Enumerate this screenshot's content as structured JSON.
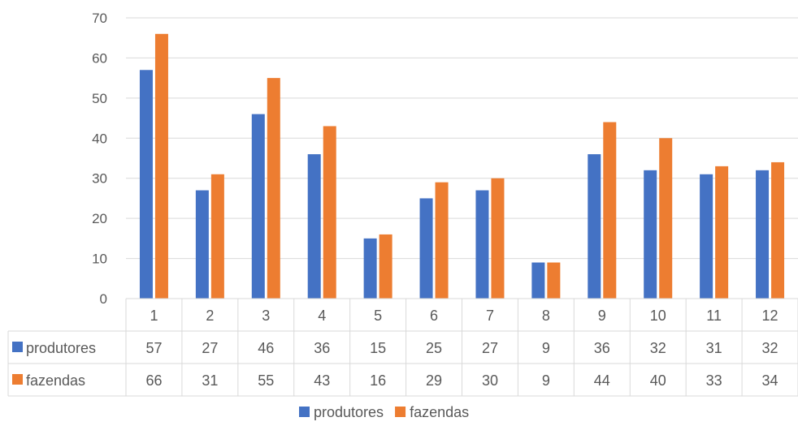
{
  "chart_data": {
    "type": "bar",
    "categories": [
      "1",
      "2",
      "3",
      "4",
      "5",
      "6",
      "7",
      "8",
      "9",
      "10",
      "11",
      "12"
    ],
    "series": [
      {
        "name": "produtores",
        "color": "#4472C4",
        "values": [
          57,
          27,
          46,
          36,
          15,
          25,
          27,
          9,
          36,
          32,
          31,
          32
        ]
      },
      {
        "name": "fazendas",
        "color": "#ED7D31",
        "values": [
          66,
          31,
          55,
          43,
          16,
          29,
          30,
          9,
          44,
          40,
          33,
          34
        ]
      }
    ],
    "ylim": [
      0,
      70
    ],
    "yticks": [
      0,
      10,
      20,
      30,
      40,
      50,
      60,
      70
    ],
    "grid": true,
    "data_table": true,
    "legend": "bottom",
    "title": "",
    "xlabel": "",
    "ylabel": ""
  }
}
